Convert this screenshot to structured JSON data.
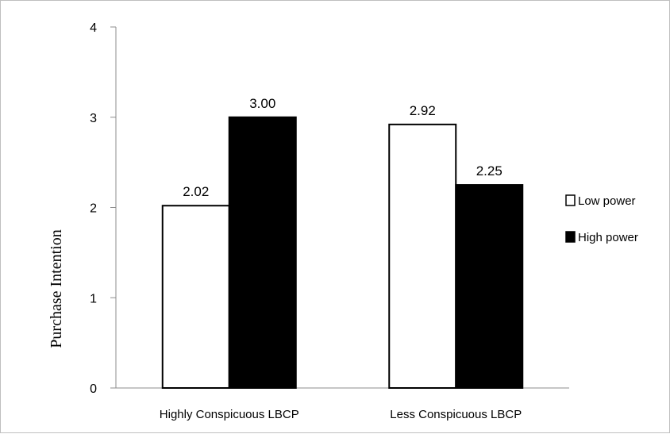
{
  "chart_data": {
    "type": "bar",
    "title": "",
    "xlabel": "",
    "ylabel": "Purchase Intention",
    "ylim": [
      0,
      4
    ],
    "yticks": [
      "0",
      "1",
      "2",
      "3",
      "4"
    ],
    "categories": [
      "Highly Conspicuous LBCP",
      "Less Conspicuous LBCP"
    ],
    "series": [
      {
        "name": "Low power",
        "values": [
          2.02,
          2.92
        ],
        "labels": [
          "2.02",
          "2.92"
        ],
        "fill": "#ffffff",
        "stroke": "#000000"
      },
      {
        "name": "High power",
        "values": [
          3.0,
          2.25
        ],
        "labels": [
          "3.00",
          "2.25"
        ],
        "fill": "#000000",
        "stroke": "#000000"
      }
    ],
    "grid": false,
    "legend_position": "right"
  }
}
